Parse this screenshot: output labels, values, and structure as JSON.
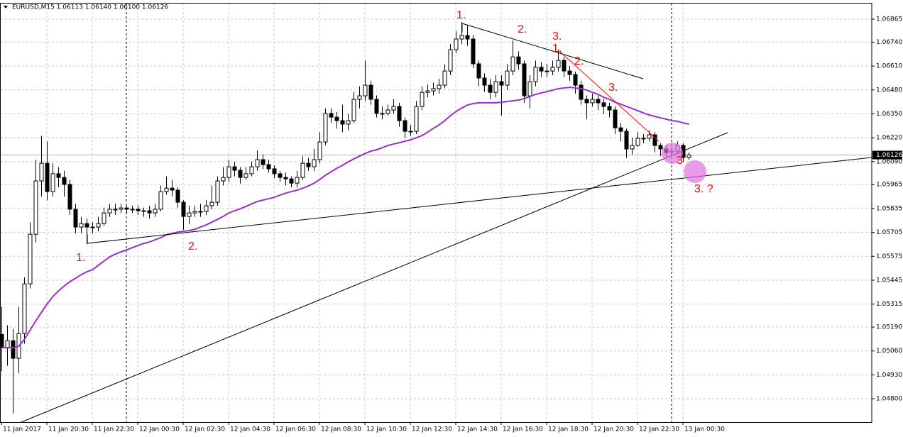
{
  "chart_data": {
    "type": "candlestick",
    "title": "EURUSD,M15  1.06113 1.06140 1.06100 1.06126",
    "categories": [
      "11 Jan 2017",
      null,
      null,
      null,
      null,
      null,
      null,
      null,
      "11 Jan 20:30",
      null,
      null,
      null,
      null,
      null,
      null,
      null,
      "11 Jan 22:30",
      null,
      null,
      null,
      null,
      null,
      null,
      null,
      "12 Jan 00:30",
      null,
      null,
      null,
      null,
      null,
      null,
      null,
      "12 Jan 02:30",
      null,
      null,
      null,
      null,
      null,
      null,
      null,
      "12 Jan 04:30",
      null,
      null,
      null,
      null,
      null,
      null,
      null,
      "12 Jan 06:30",
      null,
      null,
      null,
      null,
      null,
      null,
      null,
      "12 Jan 08:30",
      null,
      null,
      null,
      null,
      null,
      null,
      null,
      "12 Jan 10:30",
      null,
      null,
      null,
      null,
      null,
      null,
      null,
      "12 Jan 12:30",
      null,
      null,
      null,
      null,
      null,
      null,
      null,
      "12 Jan 14:30",
      null,
      null,
      null,
      null,
      null,
      null,
      null,
      "12 Jan 16:30",
      null,
      null,
      null,
      null,
      null,
      null,
      null,
      "12 Jan 18:30",
      null,
      null,
      null,
      null,
      null,
      null,
      null,
      "12 Jan 20:30",
      null,
      null,
      null,
      null,
      null,
      null,
      null,
      "12 Jan 22:30",
      null,
      null,
      null,
      null,
      null,
      null,
      null,
      "13 Jan 00:30",
      null
    ],
    "open": [
      1.0515,
      1.05078,
      1.05116,
      1.0502,
      1.05155,
      1.05425,
      1.05695,
      1.05985,
      1.06081,
      1.05927,
      1.06024,
      1.06004,
      1.05966,
      1.05831,
      1.05734,
      1.05753,
      1.05734,
      1.05734,
      1.05753,
      1.05811,
      1.05831,
      1.05831,
      1.05838,
      1.05831,
      1.05831,
      1.05823,
      1.05823,
      1.05811,
      1.05831,
      1.05927,
      1.05946,
      1.05935,
      1.05869,
      1.05792,
      1.05811,
      1.05819,
      1.05819,
      1.0585,
      1.05869,
      1.05985,
      1.06004,
      1.06062,
      1.06043,
      1.06004,
      1.06024,
      1.06062,
      1.06101,
      1.06074,
      1.06051,
      1.06024,
      1.06004,
      1.05996,
      1.05973,
      1.06004,
      1.06081,
      1.06062,
      1.06101,
      1.06197,
      1.06352,
      1.06332,
      1.06313,
      1.06294,
      1.06313,
      1.06429,
      1.06448,
      1.06506,
      1.06429,
      1.06352,
      1.06352,
      1.06371,
      1.0639,
      1.06313,
      1.06255,
      1.06255,
      1.0639,
      1.06467,
      1.06475,
      1.06487,
      1.06506,
      1.06583,
      1.06699,
      1.06757,
      1.06776,
      1.06757,
      1.06622,
      1.06545,
      1.06506,
      1.06467,
      1.06525,
      1.06506,
      1.06583,
      1.0666,
      1.06622,
      1.06448,
      1.06525,
      1.06603,
      1.06583,
      1.06583,
      1.06603,
      1.06641,
      1.06583,
      1.06564,
      1.06506,
      1.06429,
      1.0641,
      1.06429,
      1.0641,
      1.0639,
      1.06371,
      1.06274,
      1.06255,
      1.06159,
      1.06178,
      1.06217,
      1.06217,
      1.06236,
      1.06178,
      1.06159,
      1.06139,
      1.06147,
      1.06178,
      1.06113
    ],
    "high": [
      1.053,
      1.052,
      1.0518,
      1.053,
      1.0546,
      1.0576,
      1.061,
      1.0623,
      1.062,
      1.0608,
      1.0606,
      1.0604,
      1.0599,
      1.0586,
      1.0579,
      1.0578,
      1.0576,
      1.0579,
      1.0584,
      1.0586,
      1.0586,
      1.0586,
      1.0585,
      1.0585,
      1.0585,
      1.0584,
      1.0585,
      1.0586,
      1.0596,
      1.0601,
      1.0599,
      1.0595,
      1.0588,
      1.0585,
      1.0585,
      1.0586,
      1.0588,
      1.0596,
      1.0601,
      1.0606,
      1.061,
      1.0609,
      1.0606,
      1.0606,
      1.0609,
      1.0615,
      1.0613,
      1.061,
      1.0607,
      1.0604,
      1.0603,
      1.0601,
      1.0604,
      1.0612,
      1.0611,
      1.0616,
      1.0625,
      1.0638,
      1.0638,
      1.0636,
      1.064,
      1.0635,
      1.0647,
      1.065,
      1.0664,
      1.0653,
      1.0645,
      1.0639,
      1.064,
      1.0643,
      1.0641,
      1.0633,
      1.0629,
      1.0642,
      1.065,
      1.0651,
      1.0652,
      1.0654,
      1.0662,
      1.0673,
      1.068,
      1.0685,
      1.0683,
      1.0678,
      1.0664,
      1.0657,
      1.0654,
      1.0656,
      1.0656,
      1.0662,
      1.0675,
      1.0669,
      1.0664,
      1.0656,
      1.0664,
      1.0663,
      1.0662,
      1.0664,
      1.067,
      1.0666,
      1.0661,
      1.0658,
      1.0653,
      1.0645,
      1.0646,
      1.0645,
      1.0643,
      1.0641,
      1.0639,
      1.063,
      1.0627,
      1.0622,
      1.0625,
      1.0624,
      1.0626,
      1.0625,
      1.0619,
      1.0618,
      1.0617,
      1.062,
      1.0619,
      1.0614
    ],
    "low": [
      1.0495,
      1.0498,
      1.0472,
      1.0494,
      1.051,
      1.054,
      1.0565,
      1.059,
      1.0588,
      1.059,
      1.0595,
      1.059,
      1.058,
      1.057,
      1.057,
      1.0564,
      1.057,
      1.0571,
      1.0574,
      1.0579,
      1.058,
      1.0581,
      1.0581,
      1.0581,
      1.058,
      1.0579,
      1.0578,
      1.0579,
      1.0582,
      1.0591,
      1.059,
      1.0584,
      1.0572,
      1.0575,
      1.0579,
      1.0579,
      1.058,
      1.0583,
      1.0585,
      1.0596,
      1.0598,
      1.0601,
      1.0597,
      1.0599,
      1.0601,
      1.0604,
      1.0605,
      1.0603,
      1.06,
      1.0598,
      1.0596,
      1.0595,
      1.0595,
      1.0599,
      1.0604,
      1.0604,
      1.0608,
      1.0618,
      1.063,
      1.0627,
      1.0625,
      1.0626,
      1.063,
      1.0638,
      1.0642,
      1.064,
      1.0633,
      1.0632,
      1.0634,
      1.0635,
      1.0628,
      1.0622,
      1.0623,
      1.0624,
      1.0637,
      1.0644,
      1.0645,
      1.0646,
      1.0649,
      1.0656,
      1.0668,
      1.0673,
      1.0672,
      1.066,
      1.065,
      1.0647,
      1.0643,
      1.0644,
      1.0634,
      1.0648,
      1.0656,
      1.0659,
      1.0641,
      1.0638,
      1.065,
      1.0655,
      1.0655,
      1.0656,
      1.0658,
      1.0655,
      1.0653,
      1.0646,
      1.064,
      1.0632,
      1.0639,
      1.0637,
      1.0635,
      1.0633,
      1.0624,
      1.062,
      1.0611,
      1.0613,
      1.0617,
      1.0619,
      1.062,
      1.0614,
      1.0612,
      1.0611,
      1.0612,
      1.0613,
      1.0609,
      1.061
    ],
    "close": [
      1.05078,
      1.05116,
      1.0502,
      1.05155,
      1.05425,
      1.05695,
      1.05985,
      1.06081,
      1.05927,
      1.06024,
      1.06004,
      1.05966,
      1.05831,
      1.05734,
      1.05753,
      1.05734,
      1.05734,
      1.05753,
      1.05811,
      1.05831,
      1.05831,
      1.05838,
      1.05831,
      1.05831,
      1.05823,
      1.05823,
      1.05811,
      1.05831,
      1.05927,
      1.05946,
      1.05935,
      1.05869,
      1.05792,
      1.05811,
      1.05819,
      1.05819,
      1.0585,
      1.05869,
      1.05985,
      1.06004,
      1.06062,
      1.06043,
      1.06004,
      1.06024,
      1.06062,
      1.06101,
      1.06074,
      1.06051,
      1.06024,
      1.06004,
      1.05996,
      1.05973,
      1.06004,
      1.06081,
      1.06062,
      1.06101,
      1.06197,
      1.06352,
      1.06332,
      1.06313,
      1.06294,
      1.06313,
      1.06429,
      1.06448,
      1.06506,
      1.06429,
      1.06352,
      1.06352,
      1.06371,
      1.0639,
      1.06313,
      1.06255,
      1.06255,
      1.0639,
      1.06467,
      1.06475,
      1.06487,
      1.06506,
      1.06583,
      1.06699,
      1.06757,
      1.06776,
      1.06757,
      1.06622,
      1.06545,
      1.06506,
      1.06467,
      1.06525,
      1.06506,
      1.06583,
      1.0666,
      1.06622,
      1.06448,
      1.06525,
      1.06603,
      1.06583,
      1.06583,
      1.06603,
      1.06641,
      1.06583,
      1.06564,
      1.06506,
      1.06429,
      1.0641,
      1.06429,
      1.0641,
      1.0639,
      1.06371,
      1.06274,
      1.06255,
      1.06159,
      1.06178,
      1.06217,
      1.06217,
      1.06236,
      1.06178,
      1.06159,
      1.06139,
      1.06147,
      1.06178,
      1.06113,
      1.06126
    ],
    "moving_average": {
      "color": "#9b2fc9",
      "values": [
        1.05078,
        1.05078,
        1.05078,
        1.05086,
        1.05124,
        1.05174,
        1.05224,
        1.05271,
        1.05317,
        1.05356,
        1.05387,
        1.05414,
        1.05437,
        1.05456,
        1.05475,
        1.05491,
        1.05502,
        1.05526,
        1.05549,
        1.05572,
        1.05587,
        1.05599,
        1.0561,
        1.05622,
        1.05634,
        1.05645,
        1.05653,
        1.05665,
        1.05676,
        1.05692,
        1.05699,
        1.05707,
        1.05711,
        1.05715,
        1.05722,
        1.05734,
        1.05746,
        1.05761,
        1.05776,
        1.05792,
        1.05811,
        1.05823,
        1.05834,
        1.05846,
        1.05861,
        1.05873,
        1.05881,
        1.05888,
        1.05896,
        1.05908,
        1.05919,
        1.05927,
        1.05935,
        1.05946,
        1.05958,
        1.05973,
        1.05993,
        1.06016,
        1.06035,
        1.06054,
        1.0607,
        1.06089,
        1.06105,
        1.0612,
        1.06135,
        1.06147,
        1.06155,
        1.06166,
        1.06178,
        1.06186,
        1.06193,
        1.06201,
        1.06209,
        1.0622,
        1.06232,
        1.06251,
        1.06271,
        1.0629,
        1.06313,
        1.0634,
        1.06363,
        1.06382,
        1.06398,
        1.06406,
        1.0641,
        1.0641,
        1.0641,
        1.0641,
        1.06413,
        1.06417,
        1.06421,
        1.06425,
        1.06433,
        1.06444,
        1.06456,
        1.06464,
        1.06471,
        1.06479,
        1.06487,
        1.06491,
        1.06494,
        1.06491,
        1.06487,
        1.06479,
        1.06467,
        1.06456,
        1.0644,
        1.06429,
        1.06413,
        1.06402,
        1.0639,
        1.06379,
        1.06367,
        1.06355,
        1.06344,
        1.06336,
        1.06328,
        1.06321,
        1.06313,
        1.06309,
        1.06301,
        1.06294
      ]
    },
    "up_color": "#ffffff",
    "down_color": "#000000",
    "ylim": [
      1.04673,
      1.0695
    ],
    "yticks": [
      {
        "value": 1.06865,
        "label": "1.06865"
      },
      {
        "value": 1.0674,
        "label": "1.06740"
      },
      {
        "value": 1.0661,
        "label": "1.06610"
      },
      {
        "value": 1.0648,
        "label": "1.06480"
      },
      {
        "value": 1.0635,
        "label": "1.06350"
      },
      {
        "value": 1.0622,
        "label": "1.06220"
      },
      {
        "value": 1.0609,
        "label": "1.06090"
      },
      {
        "value": 1.05965,
        "label": "1.05965"
      },
      {
        "value": 1.05835,
        "label": "1.05835"
      },
      {
        "value": 1.05705,
        "label": "1.05705"
      },
      {
        "value": 1.05575,
        "label": "1.05575"
      },
      {
        "value": 1.05445,
        "label": "1.05445"
      },
      {
        "value": 1.05315,
        "label": "1.05315"
      },
      {
        "value": 1.0519,
        "label": "1.05190"
      },
      {
        "value": 1.0506,
        "label": "1.05060"
      },
      {
        "value": 1.0493,
        "label": "1.04930"
      },
      {
        "value": 1.048,
        "label": "1.04800"
      }
    ],
    "last_price": 1.06126,
    "grid": true,
    "annotations": [
      "1.",
      "2.",
      "3.",
      "1.",
      "2.",
      "3.",
      "3",
      "3. ?",
      "1.",
      "2."
    ]
  }
}
